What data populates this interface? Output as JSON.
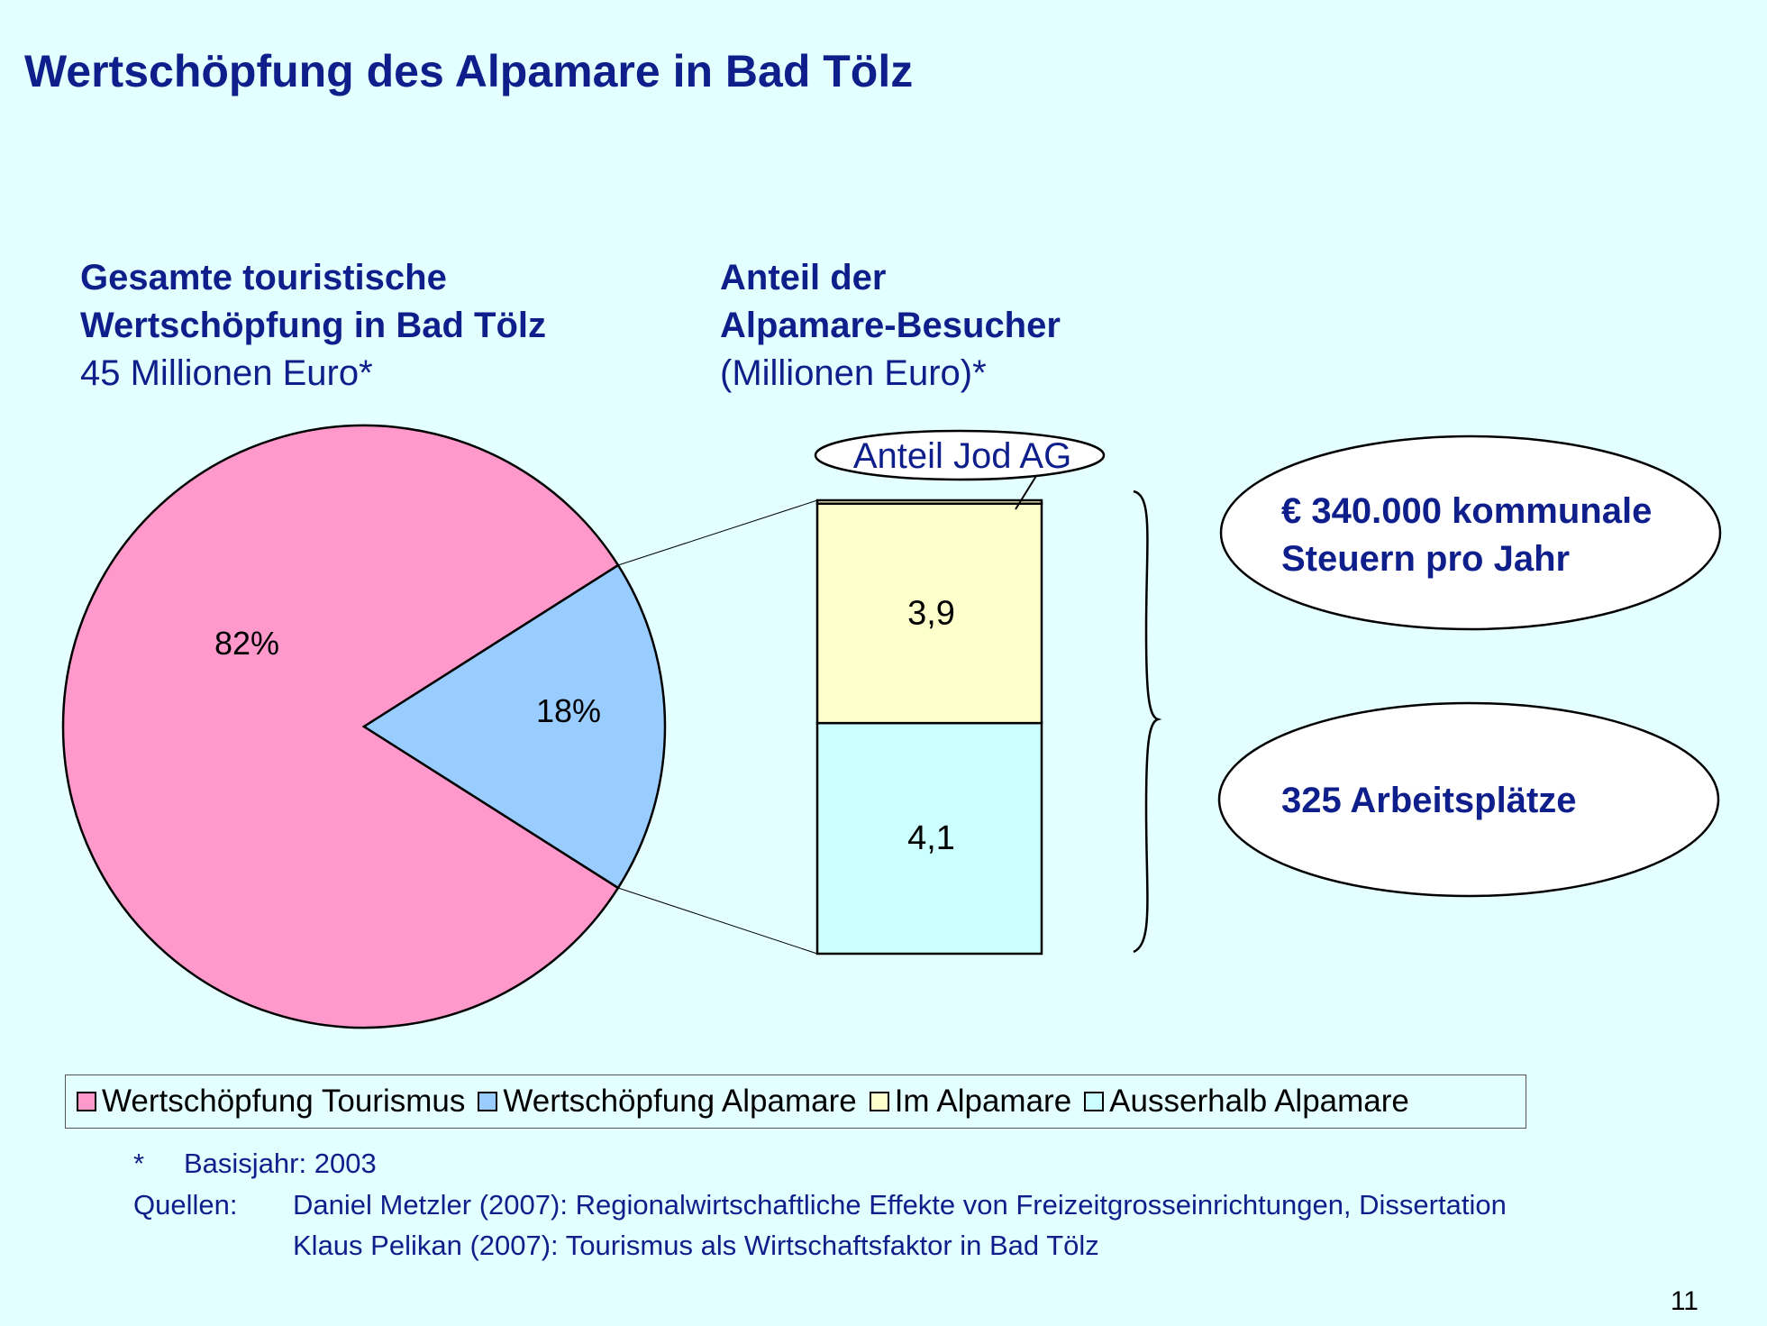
{
  "title": "Wertschöpfung des Alpamare in Bad Tölz",
  "left_heading": {
    "line1": "Gesamte touristische",
    "line2": "Wertschöpfung in Bad Tölz",
    "line3": "45 Millionen Euro*"
  },
  "right_heading": {
    "line1": "Anteil der",
    "line2": "Alpamare-Besucher",
    "line3": "(Millionen Euro)*"
  },
  "chart_data": [
    {
      "type": "pie",
      "labels": [
        "Wertschöpfung Tourismus",
        "Wertschöpfung Alpamare"
      ],
      "values": [
        82,
        18
      ],
      "value_labels": [
        "82%",
        "18%"
      ],
      "colors": [
        "#FF99CC",
        "#99CCFF"
      ]
    },
    {
      "type": "bar",
      "stacked": true,
      "series": [
        {
          "name": "Ausserhalb Alpamare",
          "value": 4.1,
          "label": "4,1",
          "color": "#CCFFFF"
        },
        {
          "name": "Im Alpamare",
          "value": 3.9,
          "label": "3,9",
          "color": "#FFFFCC"
        },
        {
          "name": "Anteil Jod AG",
          "value": 0.06,
          "label": "",
          "color": "#FFFFCC"
        }
      ],
      "annotation": "Anteil Jod AG"
    }
  ],
  "ovals": {
    "taxes": {
      "line1": "€ 340.000 kommunale",
      "line2": "Steuern pro Jahr"
    },
    "jobs": {
      "line1": "325 Arbeitsplätze"
    }
  },
  "legend": [
    {
      "label": "Wertschöpfung Tourismus",
      "color": "#FF99CC"
    },
    {
      "label": "Wertschöpfung Alpamare",
      "color": "#99CCFF"
    },
    {
      "label": "Im Alpamare",
      "color": "#FFFFCC"
    },
    {
      "label": "Ausserhalb Alpamare",
      "color": "#CCFFFF"
    }
  ],
  "footnotes": {
    "star": "*",
    "basis": "Basisjahr: 2003",
    "sources_label": "Quellen:",
    "source1": "Daniel Metzler (2007): Regionalwirtschaftliche Effekte von Freizeitgrosseinrichtungen, Dissertation",
    "source2": "Klaus Pelikan (2007): Tourismus als Wirtschaftsfaktor in Bad Tölz"
  },
  "page_number": "11"
}
